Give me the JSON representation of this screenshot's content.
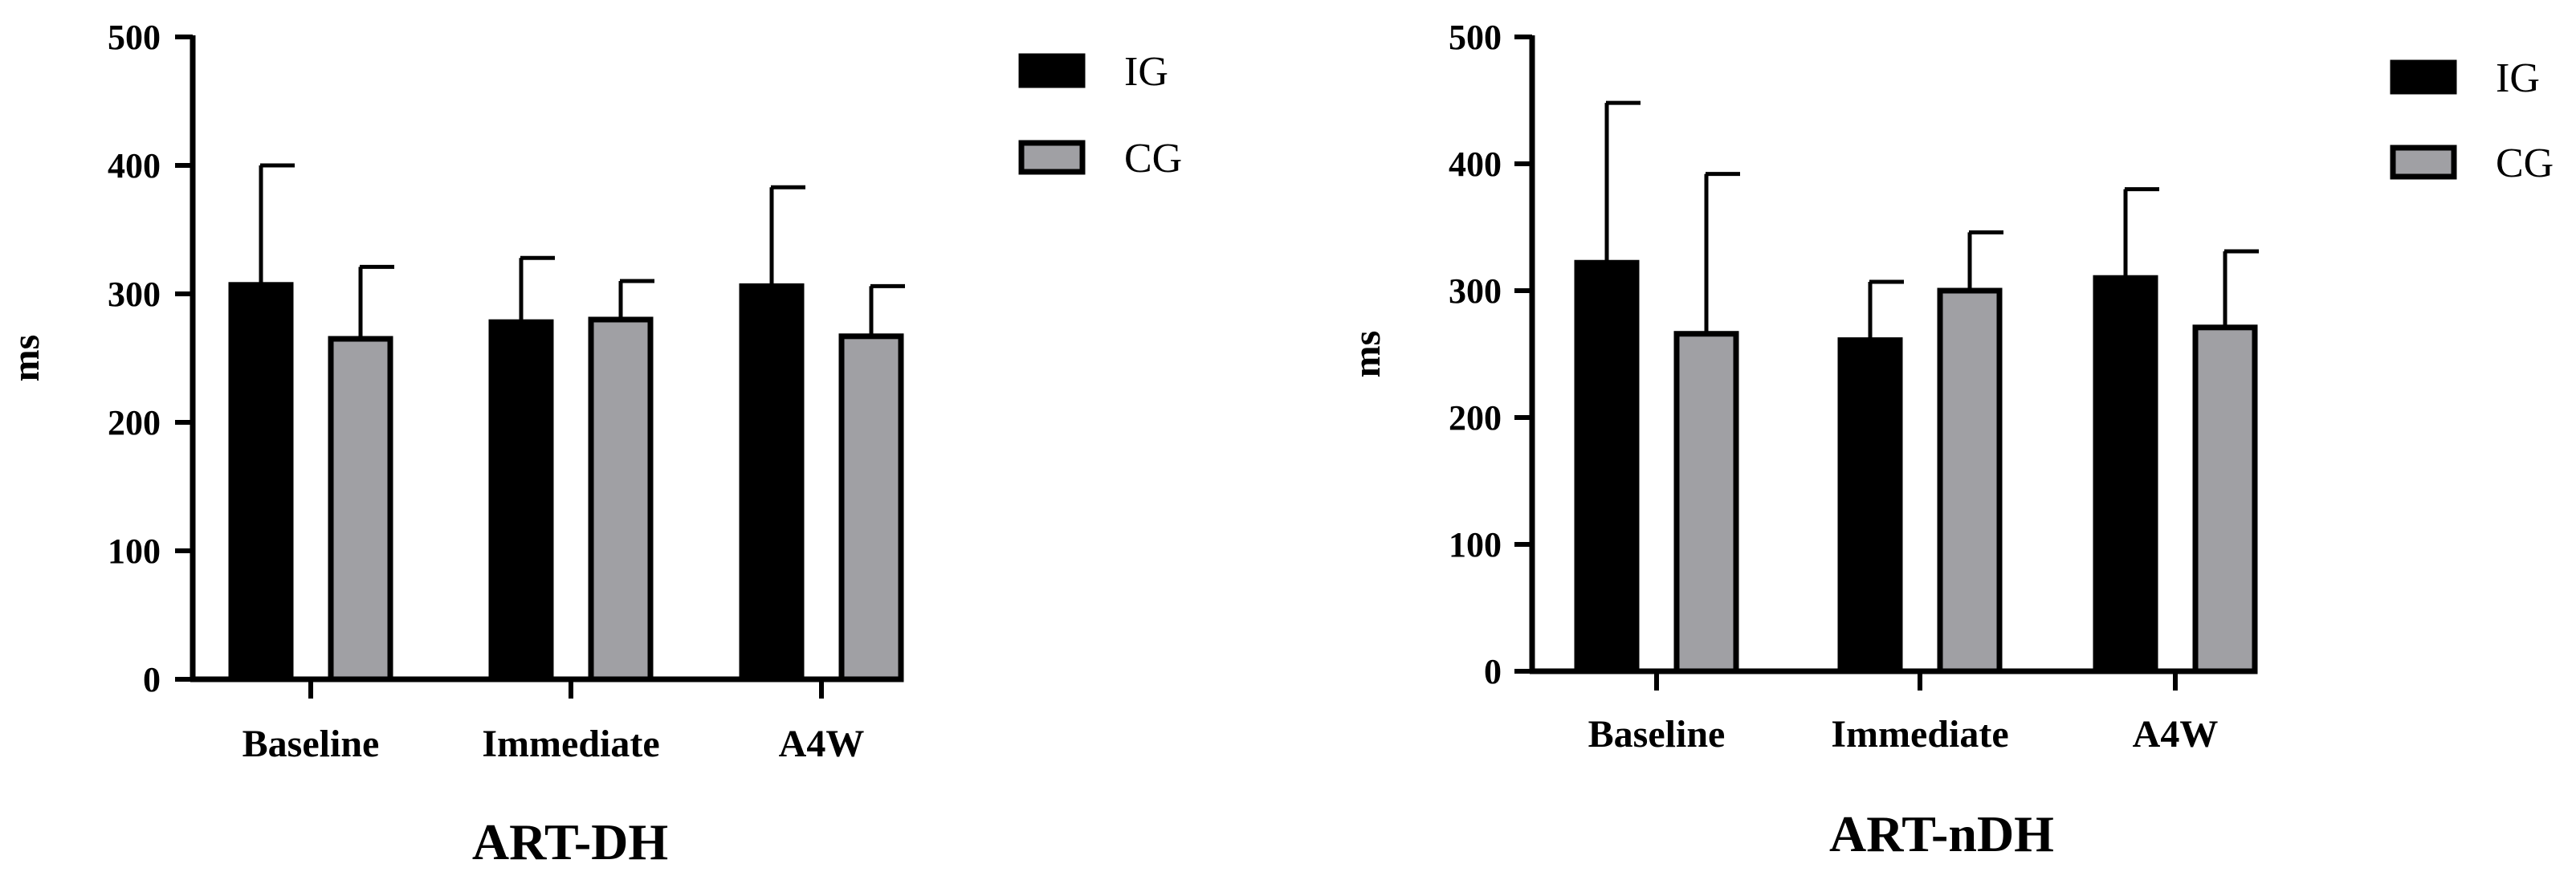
{
  "chart_data": [
    {
      "type": "bar",
      "title": "ART-DH",
      "xlabel": "ART-DH",
      "ylabel": "ms",
      "ylim": [
        0,
        500
      ],
      "yticks": [
        "0",
        "100",
        "200",
        "300",
        "400",
        "500"
      ],
      "categories": [
        "Baseline",
        "Immediate",
        "A4W"
      ],
      "series": [
        {
          "name": "IG",
          "color": "#000000",
          "values": [
            307,
            278,
            306
          ],
          "error": [
            93,
            50,
            77
          ]
        },
        {
          "name": "CG",
          "color": "#a0a0a4",
          "values": [
            265,
            280,
            267
          ],
          "error": [
            56,
            30,
            39
          ]
        }
      ],
      "legend": [
        "IG",
        "CG"
      ]
    },
    {
      "type": "bar",
      "title": "ART-nDH",
      "xlabel": "ART-nDH",
      "ylabel": "ms",
      "ylim": [
        0,
        500
      ],
      "yticks": [
        "0",
        "100",
        "200",
        "300",
        "400",
        "500"
      ],
      "categories": [
        "Baseline",
        "Immediate",
        "A4W"
      ],
      "series": [
        {
          "name": "IG",
          "color": "#000000",
          "values": [
            322,
            261,
            310
          ],
          "error": [
            126,
            46,
            70
          ]
        },
        {
          "name": "CG",
          "color": "#a0a0a4",
          "values": [
            266,
            300,
            271
          ],
          "error": [
            126,
            46,
            60
          ]
        }
      ],
      "legend": [
        "IG",
        "CG"
      ]
    }
  ]
}
